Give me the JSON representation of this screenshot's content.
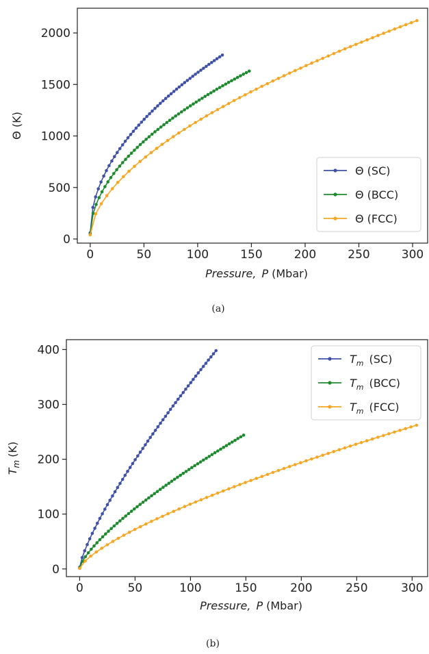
{
  "chart_data": [
    {
      "type": "line",
      "caption": "(a)",
      "xlabel_italic": "Pressure,",
      "xlabel_var": "P",
      "xlabel_unit": "(Mbar)",
      "ylabel": "Θ (K)",
      "xlim": [
        -12,
        314
      ],
      "ylim": [
        -40,
        2240
      ],
      "xticks": [
        0,
        50,
        100,
        150,
        200,
        250,
        300
      ],
      "yticks": [
        0,
        500,
        1000,
        1500,
        2000
      ],
      "legend_position": "lower-right",
      "series": [
        {
          "name": "Θ (SC)",
          "color": "#3f51a8",
          "pmax": 123,
          "ymin": 60,
          "ymax": 1785,
          "exponent": 0.5,
          "points": 50
        },
        {
          "name": "Θ (BCC)",
          "color": "#1e8a2e",
          "pmax": 148,
          "ymin": 50,
          "ymax": 1630,
          "exponent": 0.52,
          "points": 55
        },
        {
          "name": "Θ (FCC)",
          "color": "#f5a623",
          "pmax": 304,
          "ymin": 40,
          "ymax": 2120,
          "exponent": 0.57,
          "points": 60
        }
      ]
    },
    {
      "type": "line",
      "caption": "(b)",
      "xlabel_italic": "Pressure,",
      "xlabel_var": "P",
      "xlabel_unit": "(Mbar)",
      "ylabel_var": "T",
      "ylabel_sub": "m",
      "ylabel_unit": "(K)",
      "xlim": [
        -12,
        314
      ],
      "ylim": [
        -14,
        418
      ],
      "xticks": [
        0,
        50,
        100,
        150,
        200,
        250,
        300
      ],
      "yticks": [
        0,
        100,
        200,
        300,
        400
      ],
      "legend_position": "upper-right",
      "series": [
        {
          "name_var": "T",
          "name_sub": "m",
          "name_rest": "(SC)",
          "color": "#3f51a8",
          "pmax": 123,
          "ymin": 3,
          "ymax": 398,
          "exponent": 0.78,
          "points": 55
        },
        {
          "name_var": "T",
          "name_sub": "m",
          "name_rest": "(BCC)",
          "color": "#1e8a2e",
          "pmax": 148,
          "ymin": 2,
          "ymax": 244,
          "exponent": 0.74,
          "points": 58
        },
        {
          "name_var": "T",
          "name_sub": "m",
          "name_rest": "(FCC)",
          "color": "#f5a623",
          "pmax": 304,
          "ymin": 1,
          "ymax": 262,
          "exponent": 0.72,
          "points": 62
        }
      ]
    }
  ]
}
